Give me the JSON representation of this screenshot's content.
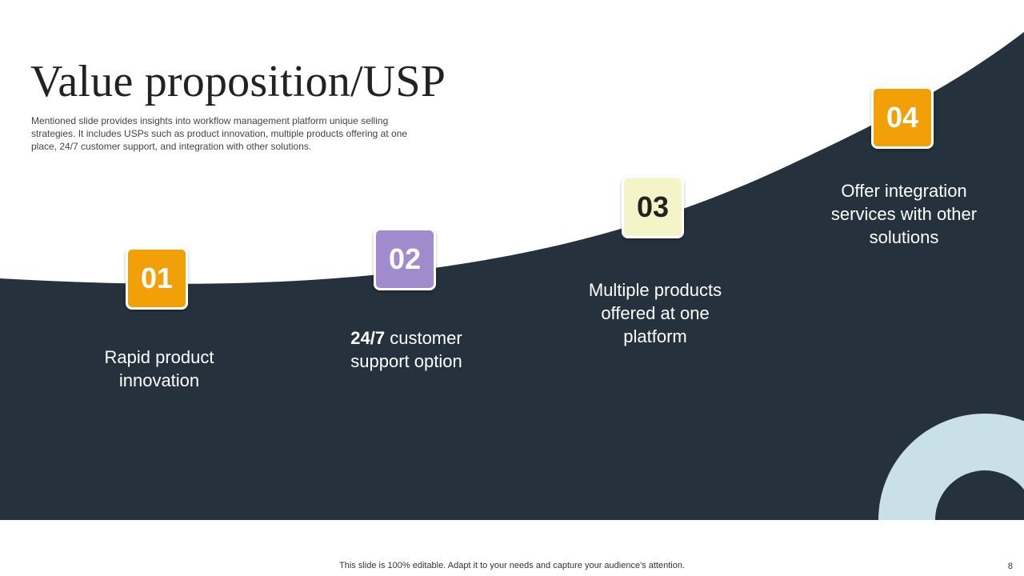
{
  "slide": {
    "title": "Value proposition/USP",
    "subtitle": "Mentioned slide provides insights into workflow management platform unique selling strategies. It includes USPs such as product innovation, multiple products offering at one place, 24/7 customer support, and integration with other solutions.",
    "steps": [
      {
        "number": "01",
        "text": "Rapid product innovation",
        "badge_color": "#F2A007",
        "number_color": "#FFFFFF"
      },
      {
        "number": "02",
        "text_bold": "24/7",
        "text": " customer support option",
        "badge_color": "#A08BCC",
        "number_color": "#FFFFFF"
      },
      {
        "number": "03",
        "text": "Multiple products offered at one platform",
        "badge_color": "#F4F4C8",
        "number_color": "#222222"
      },
      {
        "number": "04",
        "text": "Offer integration services with other solutions",
        "badge_color": "#F2A007",
        "number_color": "#FFFFFF"
      }
    ],
    "footer_note": "This slide is 100% editable. Adapt it to your needs and capture your audience's attention.",
    "page_number": "8"
  },
  "colors": {
    "dark_background": "#25313D",
    "ring": "#C9E0E8",
    "accent_orange": "#F2A007",
    "accent_purple": "#A08BCC",
    "accent_cream": "#F4F4C8"
  }
}
